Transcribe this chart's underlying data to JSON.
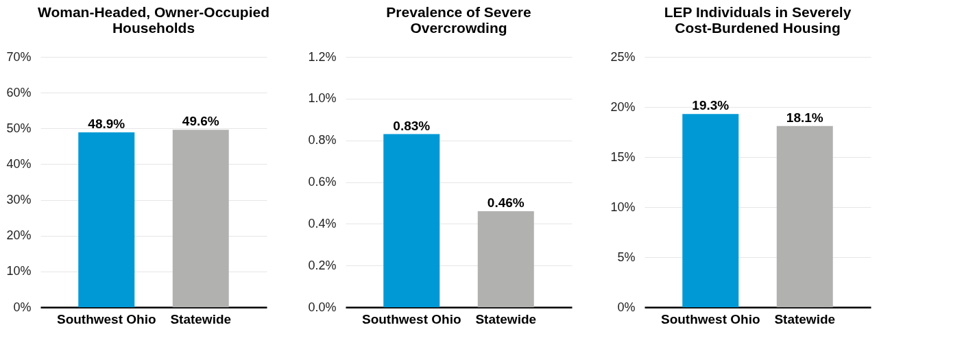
{
  "chart_data": [
    {
      "type": "bar",
      "title": "Woman-Headed, Owner-Occupied\nHouseholds",
      "categories": [
        "Southwest Ohio",
        "Statewide"
      ],
      "values": [
        48.9,
        49.6
      ],
      "colors": [
        "#0099d6",
        "#b1b2b0"
      ],
      "value_labels": [
        "48.9%",
        "49.6%"
      ],
      "ylim": [
        0,
        70
      ],
      "yticks": [
        {
          "value": 0,
          "label": "0%"
        },
        {
          "value": 10,
          "label": "10%"
        },
        {
          "value": 20,
          "label": "20%"
        },
        {
          "value": 30,
          "label": "30%"
        },
        {
          "value": 40,
          "label": "40%"
        },
        {
          "value": 50,
          "label": "50%"
        },
        {
          "value": 60,
          "label": "60%"
        },
        {
          "value": 70,
          "label": "70%"
        }
      ],
      "grid": "y"
    },
    {
      "type": "bar",
      "title": "Prevalence of Severe\nOvercrowding",
      "categories": [
        "Southwest Ohio",
        "Statewide"
      ],
      "values": [
        0.83,
        0.46
      ],
      "colors": [
        "#0099d6",
        "#b1b2b0"
      ],
      "value_labels": [
        "0.83%",
        "0.46%"
      ],
      "ylim": [
        0,
        1.2
      ],
      "yticks": [
        {
          "value": 0,
          "label": "0.0%"
        },
        {
          "value": 0.2,
          "label": "0.2%"
        },
        {
          "value": 0.4,
          "label": "0.4%"
        },
        {
          "value": 0.6,
          "label": "0.6%"
        },
        {
          "value": 0.8,
          "label": "0.8%"
        },
        {
          "value": 1.0,
          "label": "1.0%"
        },
        {
          "value": 1.2,
          "label": "1.2%"
        }
      ],
      "grid": "y"
    },
    {
      "type": "bar",
      "title": "LEP Individuals in Severely\nCost-Burdened Housing",
      "categories": [
        "Southwest Ohio",
        "Statewide"
      ],
      "values": [
        19.3,
        18.1
      ],
      "colors": [
        "#0099d6",
        "#b1b2b0"
      ],
      "value_labels": [
        "19.3%",
        "18.1%"
      ],
      "ylim": [
        0,
        25
      ],
      "yticks": [
        {
          "value": 0,
          "label": "0%"
        },
        {
          "value": 5,
          "label": "5%"
        },
        {
          "value": 10,
          "label": "10%"
        },
        {
          "value": 15,
          "label": "15%"
        },
        {
          "value": 20,
          "label": "20%"
        },
        {
          "value": 25,
          "label": "25%"
        }
      ],
      "grid": "y"
    }
  ]
}
